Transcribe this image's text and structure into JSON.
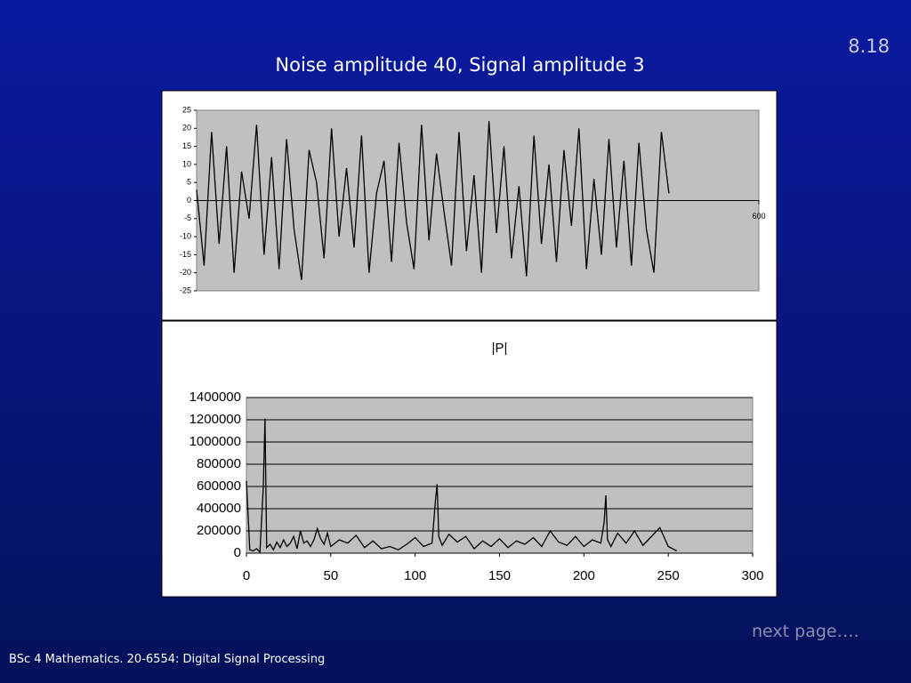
{
  "slide": {
    "page_number": "8.18",
    "title": "Noise amplitude 40, Signal amplitude 3",
    "next": "next page….",
    "footer": "BSc 4 Mathematics.  20-6554: Digital Signal Processing"
  },
  "chart_data": [
    {
      "type": "line",
      "color": "#000000",
      "x": [
        0,
        8,
        16,
        24,
        32,
        40,
        48,
        56,
        64,
        72,
        80,
        88,
        96,
        104,
        112,
        120,
        128,
        136,
        144,
        152,
        160,
        168,
        176,
        184,
        192,
        200,
        208,
        216,
        224,
        232,
        240,
        248,
        256,
        264,
        272,
        280,
        288,
        296,
        304,
        312,
        320,
        328,
        336,
        344,
        352,
        360,
        368,
        376,
        384,
        392,
        400,
        408,
        416,
        424,
        432,
        440,
        448,
        456,
        464,
        472,
        480,
        488,
        496,
        504
      ],
      "values": [
        3,
        -18,
        19,
        -12,
        15,
        -20,
        8,
        -5,
        21,
        -15,
        12,
        -19,
        17,
        -8,
        -22,
        14,
        5,
        -16,
        20,
        -10,
        9,
        -13,
        18,
        -20,
        2,
        11,
        -17,
        16,
        -6,
        -19,
        21,
        -11,
        13,
        -3,
        -18,
        19,
        -14,
        7,
        -20,
        22,
        -9,
        15,
        -16,
        4,
        -21,
        18,
        -12,
        10,
        -17,
        14,
        -7,
        20,
        -19,
        6,
        -15,
        17,
        -13,
        11,
        -18,
        16,
        -8,
        -20,
        19,
        2
      ],
      "xlim": [
        0,
        600
      ],
      "xticks": [
        600
      ],
      "ylim": [
        -25,
        25
      ],
      "yticks": [
        25,
        20,
        15,
        10,
        5,
        0,
        -5,
        -10,
        -15,
        -20,
        -25
      ]
    },
    {
      "type": "line",
      "title": "|P|",
      "color": "#000000",
      "x": [
        0,
        2,
        4,
        6,
        8,
        10,
        11,
        12,
        14,
        16,
        18,
        20,
        22,
        24,
        26,
        28,
        30,
        32,
        34,
        36,
        38,
        40,
        42,
        44,
        46,
        48,
        50,
        55,
        60,
        65,
        70,
        75,
        80,
        85,
        90,
        95,
        100,
        105,
        110,
        112,
        113,
        114,
        116,
        120,
        125,
        130,
        135,
        140,
        145,
        150,
        155,
        160,
        165,
        170,
        175,
        180,
        185,
        190,
        195,
        200,
        205,
        210,
        212,
        213,
        214,
        216,
        220,
        225,
        230,
        235,
        240,
        245,
        250,
        255
      ],
      "values": [
        650000,
        30000,
        20000,
        40000,
        10000,
        600000,
        1210000,
        50000,
        80000,
        30000,
        100000,
        50000,
        120000,
        60000,
        90000,
        150000,
        40000,
        200000,
        90000,
        110000,
        60000,
        120000,
        220000,
        130000,
        80000,
        180000,
        60000,
        120000,
        90000,
        160000,
        50000,
        110000,
        40000,
        60000,
        30000,
        80000,
        140000,
        60000,
        90000,
        470000,
        620000,
        150000,
        70000,
        170000,
        100000,
        150000,
        40000,
        110000,
        60000,
        130000,
        50000,
        110000,
        80000,
        140000,
        60000,
        200000,
        100000,
        70000,
        150000,
        60000,
        120000,
        90000,
        280000,
        520000,
        120000,
        60000,
        180000,
        90000,
        200000,
        70000,
        150000,
        230000,
        60000,
        20000
      ],
      "xlim": [
        0,
        300
      ],
      "xticks": [
        0,
        50,
        100,
        150,
        200,
        250,
        300
      ],
      "ylim": [
        0,
        1400000
      ],
      "yticks": [
        0,
        200000,
        400000,
        600000,
        800000,
        1000000,
        1200000,
        1400000
      ],
      "grid": true
    }
  ]
}
